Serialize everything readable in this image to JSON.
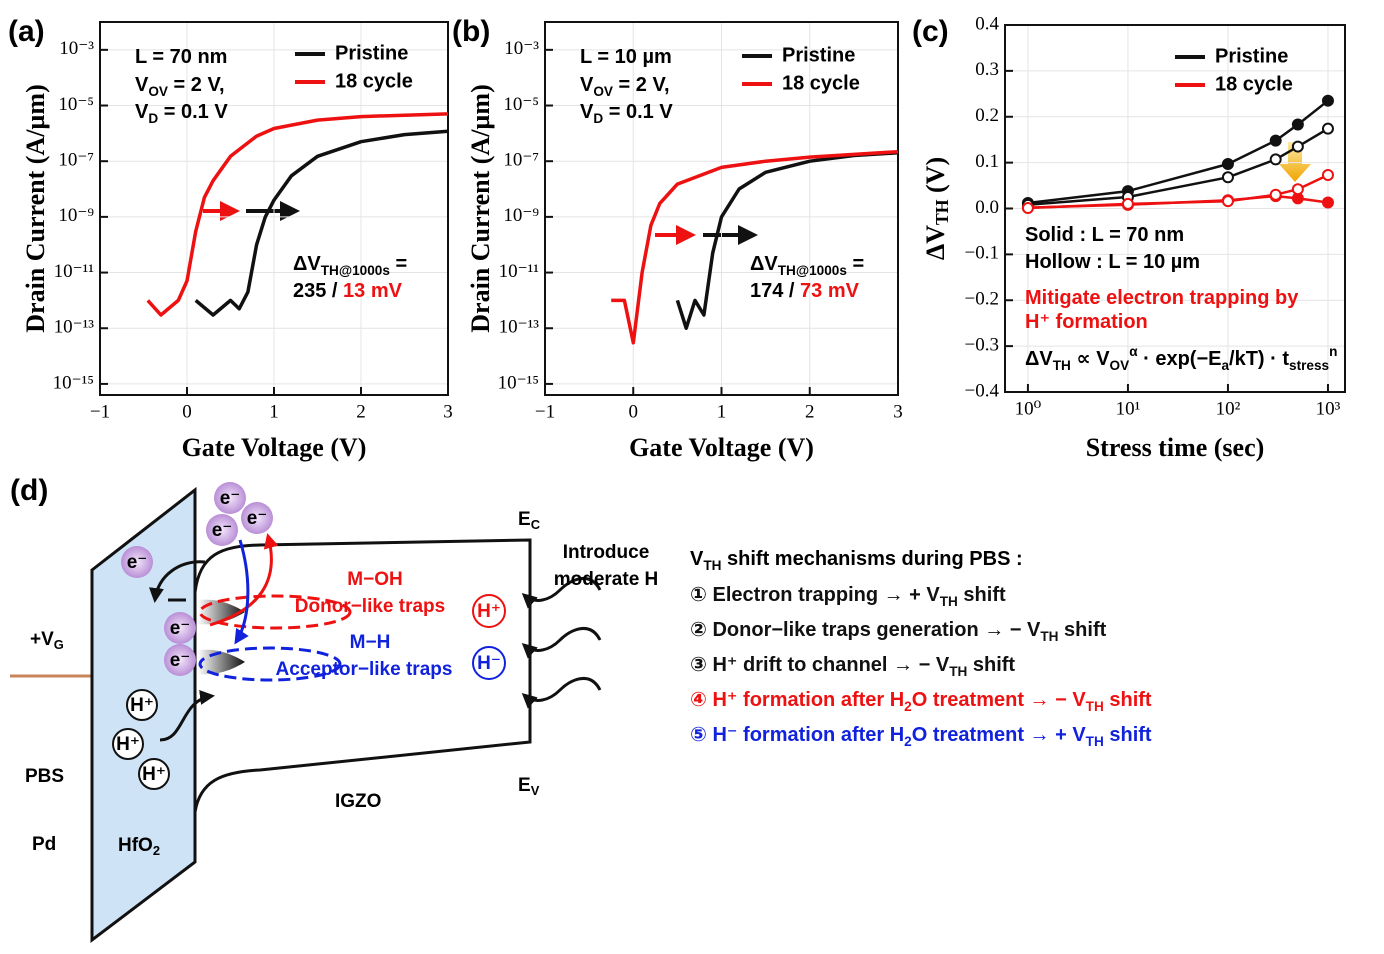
{
  "chart_data": [
    {
      "type": "line",
      "panel": "(a)",
      "xlabel": "Gate Voltage (V)",
      "ylabel": "Drain Current (A/µm)",
      "ylog": true,
      "grid": true,
      "xlim": [
        -1,
        3
      ],
      "xticks": [
        {
          "value": -1,
          "label": "−1"
        },
        0,
        1,
        2,
        3
      ],
      "ylim": [
        4e-16,
        0.01
      ],
      "yticks": [
        {
          "value": 1e-15,
          "label": "10⁻¹⁵"
        },
        {
          "value": 1e-13,
          "label": "10⁻¹³"
        },
        {
          "value": 1e-11,
          "label": "10⁻¹¹"
        },
        {
          "value": 1e-09,
          "label": "10⁻⁹"
        },
        {
          "value": 1e-07,
          "label": "10⁻⁷"
        },
        {
          "value": 1e-05,
          "label": "10⁻⁵"
        },
        {
          "value": 0.001,
          "label": "10⁻³"
        }
      ],
      "series": [
        {
          "name": "Pristine",
          "color": "#111111",
          "x": [
            0.1,
            0.3,
            0.5,
            0.6,
            0.7,
            0.8,
            0.9,
            1.0,
            1.2,
            1.5,
            2.0,
            2.5,
            3.0
          ],
          "values": [
            1e-12,
            3e-13,
            1e-12,
            5e-13,
            2e-12,
            1e-10,
            1e-09,
            4e-09,
            3e-08,
            1.5e-07,
            5e-07,
            9e-07,
            1.2e-06
          ]
        },
        {
          "name": "18 cycle",
          "color": "#ee1111",
          "x": [
            -0.45,
            -0.3,
            -0.1,
            0,
            0.1,
            0.2,
            0.3,
            0.5,
            0.8,
            1.0,
            1.5,
            2.0,
            2.5,
            3.0
          ],
          "values": [
            1e-12,
            3e-13,
            1e-12,
            5e-12,
            3e-10,
            5e-09,
            2e-08,
            1.5e-07,
            8e-07,
            1.5e-06,
            3e-06,
            4e-06,
            4.5e-06,
            5e-06
          ]
        }
      ],
      "annotations": [
        [
          {
            "text": "L = 70 nm"
          }
        ],
        [
          {
            "text": "V"
          },
          {
            "text": "OV",
            "sub": true
          },
          {
            "text": " = 2 V,"
          }
        ],
        [
          {
            "text": "V"
          },
          {
            "text": "D",
            "sub": true
          },
          {
            "text": " = 0.1 V"
          }
        ],
        [
          {
            "text": "ΔV"
          },
          {
            "text": "TH@1000s",
            "sub": true
          },
          {
            "text": " ="
          }
        ],
        [
          {
            "text": "235 / "
          },
          {
            "text": "13 mV",
            "color": "#ee1111"
          }
        ]
      ]
    },
    {
      "type": "line",
      "panel": "(b)",
      "xlabel": "Gate Voltage (V)",
      "ylabel": "Drain Current (A/µm)",
      "ylog": true,
      "grid": true,
      "xlim": [
        -1,
        3
      ],
      "xticks": [
        {
          "value": -1,
          "label": "−1"
        },
        0,
        1,
        2,
        3
      ],
      "ylim": [
        4e-16,
        0.01
      ],
      "yticks": [
        {
          "value": 1e-15,
          "label": "10⁻¹⁵"
        },
        {
          "value": 1e-13,
          "label": "10⁻¹³"
        },
        {
          "value": 1e-11,
          "label": "10⁻¹¹"
        },
        {
          "value": 1e-09,
          "label": "10⁻⁹"
        },
        {
          "value": 1e-07,
          "label": "10⁻⁷"
        },
        {
          "value": 1e-05,
          "label": "10⁻⁵"
        },
        {
          "value": 0.001,
          "label": "10⁻³"
        }
      ],
      "series": [
        {
          "name": "Pristine",
          "color": "#111111",
          "x": [
            0.5,
            0.6,
            0.7,
            0.8,
            0.9,
            1.0,
            1.2,
            1.5,
            2.0,
            2.5,
            3.0
          ],
          "values": [
            1e-12,
            1e-13,
            1e-12,
            3e-13,
            5e-11,
            1e-09,
            1e-08,
            4e-08,
            1e-07,
            1.6e-07,
            2e-07
          ]
        },
        {
          "name": "18 cycle",
          "color": "#ee1111",
          "x": [
            -0.25,
            -0.1,
            0,
            0.1,
            0.2,
            0.3,
            0.5,
            1.0,
            1.5,
            2.0,
            3.0
          ],
          "values": [
            1e-12,
            1e-12,
            3e-14,
            1e-11,
            5e-10,
            3e-09,
            1.5e-08,
            6e-08,
            1e-07,
            1.4e-07,
            2.2e-07
          ]
        }
      ],
      "annotations": [
        [
          {
            "text": "L = 10 µm"
          }
        ],
        [
          {
            "text": "V"
          },
          {
            "text": "OV",
            "sub": true
          },
          {
            "text": " = 2 V,"
          }
        ],
        [
          {
            "text": "V"
          },
          {
            "text": "D",
            "sub": true
          },
          {
            "text": " = 0.1 V"
          }
        ],
        [
          {
            "text": "ΔV"
          },
          {
            "text": "TH@1000s",
            "sub": true
          },
          {
            "text": " ="
          }
        ],
        [
          {
            "text": "174 / "
          },
          {
            "text": "73 mV",
            "color": "#ee1111"
          }
        ]
      ]
    },
    {
      "type": "line",
      "panel": "(c)",
      "xlabel": "Stress time (sec)",
      "ylabel": [
        {
          "text": "ΔV"
        },
        {
          "text": "TH",
          "sub": true
        },
        {
          "text": " (V)"
        }
      ],
      "xlog": true,
      "grid": true,
      "markers": true,
      "xlim": [
        0.59,
        1480
      ],
      "xticks": [
        {
          "value": 1,
          "label": "10⁰"
        },
        {
          "value": 10,
          "label": "10¹"
        },
        {
          "value": 100,
          "label": "10²"
        },
        {
          "value": 1000,
          "label": "10³"
        }
      ],
      "ylim": [
        -0.4,
        0.4
      ],
      "yticks": [
        {
          "value": -0.4,
          "label": "−0.4"
        },
        {
          "value": -0.3,
          "label": "−0.3"
        },
        {
          "value": -0.2,
          "label": "−0.2"
        },
        {
          "value": -0.1,
          "label": "−0.1"
        },
        {
          "value": 0,
          "label": "0.0"
        },
        0.1,
        0.2,
        0.3,
        0.4
      ],
      "series": [
        {
          "name": "Pristine",
          "color": "#111111",
          "marker": "filled",
          "x": [
            1,
            10,
            100,
            300,
            500,
            1000
          ],
          "values": [
            0.012,
            0.038,
            0.097,
            0.148,
            0.183,
            0.235
          ]
        },
        {
          "name": "18 cycle",
          "color": "#ee1111",
          "marker": "filled",
          "x": [
            1,
            10,
            100,
            300,
            500,
            1000
          ],
          "values": [
            0.002,
            0.008,
            0.018,
            0.027,
            0.022,
            0.013
          ]
        },
        {
          "color": "#111111",
          "marker": "open",
          "x": [
            1,
            10,
            100,
            300,
            500,
            1000
          ],
          "values": [
            0.008,
            0.025,
            0.068,
            0.107,
            0.135,
            0.174
          ]
        },
        {
          "color": "#ee1111",
          "marker": "open",
          "x": [
            1,
            10,
            100,
            300,
            500,
            1000
          ],
          "values": [
            0.001,
            0.01,
            0.016,
            0.03,
            0.042,
            0.073
          ]
        }
      ],
      "annotations": [
        [
          {
            "text": "Solid : L = 70 nm"
          }
        ],
        [
          {
            "text": "Hollow : L = 10 µm"
          }
        ],
        [
          {
            "text": "Mitigate electron trapping by",
            "color": "#ee1111"
          }
        ],
        [
          {
            "text": "H⁺ formation",
            "color": "#ee1111"
          }
        ],
        [
          {
            "text": "ΔV"
          },
          {
            "text": "TH",
            "sub": true
          },
          {
            "text": " ∝ V"
          },
          {
            "text": "OV",
            "sub": true
          },
          {
            "text": "α",
            "sup": true
          },
          {
            "text": " · exp(−E"
          },
          {
            "text": "a",
            "sub": true
          },
          {
            "text": "/kT) · t"
          },
          {
            "text": "stress",
            "sub": true
          },
          {
            "text": "n",
            "sup": true
          }
        ]
      ]
    }
  ],
  "diagram": {
    "panel": "(d)",
    "electrons": [
      "e⁻",
      "e⁻",
      "e⁻",
      "e⁻",
      "e⁻",
      "e⁻"
    ],
    "oxide_protons": [
      "H⁺",
      "H⁺",
      "H⁺"
    ],
    "gate": [
      {
        "text": "+V"
      },
      {
        "text": "G",
        "sub": true
      }
    ],
    "stress": "PBS",
    "metal": "Pd",
    "oxide": [
      {
        "text": "HfO"
      },
      {
        "text": "2",
        "sub": true
      }
    ],
    "channel": "IGZO",
    "ec": [
      {
        "text": "E"
      },
      {
        "text": "C",
        "sub": true
      }
    ],
    "ev": [
      {
        "text": "E"
      },
      {
        "text": "V",
        "sub": true
      }
    ],
    "introduce": [
      "Introduce",
      "moderate H"
    ],
    "donor_species": "M−OH",
    "donor_traps": "Donor−like traps",
    "acceptor_species": "M−H",
    "acceptor_traps": "Acceptor−like traps",
    "h_plus": "H⁺",
    "h_minus": "H⁻",
    "mechanisms": {
      "title": [
        {
          "text": "V"
        },
        {
          "text": "TH",
          "sub": true
        },
        {
          "text": " shift mechanisms during PBS :"
        }
      ],
      "items": [
        {
          "color": "#111111",
          "parts": [
            {
              "text": "①  Electron trapping  →  + V"
            },
            {
              "text": "TH",
              "sub": true
            },
            {
              "text": " shift"
            }
          ]
        },
        {
          "color": "#111111",
          "parts": [
            {
              "text": "②  Donor−like traps generation  →  − V"
            },
            {
              "text": "TH",
              "sub": true
            },
            {
              "text": " shift"
            }
          ]
        },
        {
          "color": "#111111",
          "parts": [
            {
              "text": "③  H⁺ drift to channel  →  − V"
            },
            {
              "text": "TH",
              "sub": true
            },
            {
              "text": " shift"
            }
          ]
        },
        {
          "color": "#ee1111",
          "parts": [
            {
              "text": "④  H⁺ formation after H"
            },
            {
              "text": "2",
              "sub": true
            },
            {
              "text": "O treatment  →  − V"
            },
            {
              "text": "TH",
              "sub": true
            },
            {
              "text": " shift"
            }
          ]
        },
        {
          "color": "#1122dd",
          "parts": [
            {
              "text": "⑤  H⁻ formation after H"
            },
            {
              "text": "2",
              "sub": true
            },
            {
              "text": "O treatment  →  + V"
            },
            {
              "text": "TH",
              "sub": true
            },
            {
              "text": " shift"
            }
          ]
        }
      ]
    }
  }
}
